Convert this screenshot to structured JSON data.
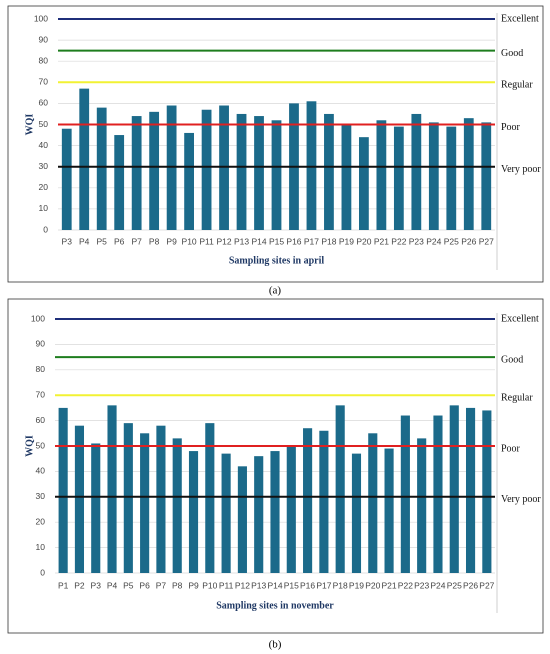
{
  "chart_data": [
    {
      "type": "bar",
      "caption": "(a)",
      "x_label": "Sampling sites in april",
      "y_label": "WQI",
      "color": "#1b6a8a",
      "categories": [
        "P3",
        "P4",
        "P5",
        "P6",
        "P7",
        "P8",
        "P9",
        "P10",
        "P11",
        "P12",
        "P13",
        "P14",
        "P15",
        "P16",
        "P17",
        "P18",
        "P19",
        "P20",
        "P21",
        "P22",
        "P23",
        "P24",
        "P25",
        "P26",
        "P27"
      ],
      "values": [
        48,
        67,
        58,
        45,
        54,
        56,
        59,
        46,
        57,
        59,
        55,
        54,
        52,
        60,
        61,
        55,
        50,
        44,
        52,
        49,
        55,
        51,
        49,
        53,
        51
      ],
      "ylim": [
        0,
        100
      ],
      "yticks": [
        0,
        10,
        20,
        30,
        40,
        50,
        60,
        70,
        80,
        90,
        100
      ],
      "grid": true,
      "ref_lines": [
        {
          "label": "Excellent",
          "value": 100,
          "color": "#1f2f7a"
        },
        {
          "label": "Good",
          "value": 85,
          "color": "#1e7d1e"
        },
        {
          "label": "Regular",
          "value": 70,
          "color": "#f2f233"
        },
        {
          "label": "Poor",
          "value": 50,
          "color": "#e02020"
        },
        {
          "label": "Very poor",
          "value": 30,
          "color": "#111111"
        }
      ]
    },
    {
      "type": "bar",
      "caption": "(b)",
      "x_label": "Sampling sites in november",
      "y_label": "WQI",
      "color": "#1b6a8a",
      "categories": [
        "P1",
        "P2",
        "P3",
        "P4",
        "P5",
        "P6",
        "P7",
        "P8",
        "P9",
        "P10",
        "P11",
        "P12",
        "P13",
        "P14",
        "P15",
        "P16",
        "P17",
        "P18",
        "P19",
        "P20",
        "P21",
        "P22",
        "P23",
        "P24",
        "P25",
        "P26",
        "P27"
      ],
      "values": [
        65,
        58,
        51,
        66,
        59,
        55,
        58,
        53,
        48,
        59,
        47,
        42,
        46,
        48,
        50,
        57,
        56,
        66,
        47,
        55,
        49,
        62,
        53,
        62,
        66,
        65,
        64
      ],
      "ylim": [
        0,
        100
      ],
      "yticks": [
        0,
        10,
        20,
        30,
        40,
        50,
        60,
        70,
        80,
        90,
        100
      ],
      "grid": true,
      "ref_lines": [
        {
          "label": "Excellent",
          "value": 100,
          "color": "#1f2f7a"
        },
        {
          "label": "Good",
          "value": 85,
          "color": "#1e7d1e"
        },
        {
          "label": "Regular",
          "value": 70,
          "color": "#f2f233"
        },
        {
          "label": "Poor",
          "value": 50,
          "color": "#e02020"
        },
        {
          "label": "Very poor",
          "value": 30,
          "color": "#111111"
        }
      ]
    }
  ]
}
